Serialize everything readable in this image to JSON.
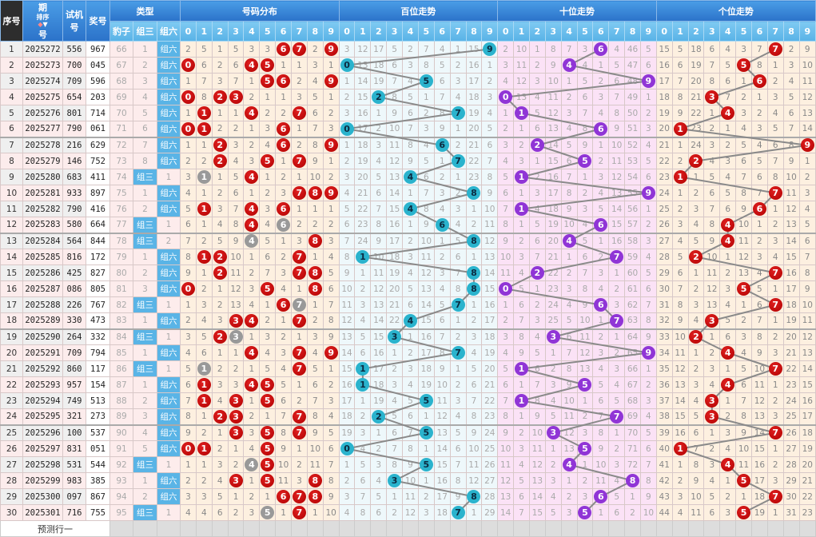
{
  "header": {
    "seq": "序号",
    "issue_top": "期",
    "issue_bottom": "号",
    "sort": "排序",
    "trial_top": "试机",
    "trial_bottom": "号",
    "prize": "奖号",
    "type_group": "类型",
    "dist_group": "号码分布",
    "hundreds_group": "百位走势",
    "tens_group": "十位走势",
    "units_group": "个位走势",
    "type_cols": [
      "豹子",
      "组三",
      "组六"
    ],
    "digits": [
      "0",
      "1",
      "2",
      "3",
      "4",
      "5",
      "6",
      "7",
      "8",
      "9"
    ]
  },
  "rows": [
    {
      "seq": "1",
      "issue": "2025272",
      "trial": "556",
      "prize": "967"
    },
    {
      "seq": "2",
      "issue": "2025273",
      "trial": "700",
      "prize": "045"
    },
    {
      "seq": "3",
      "issue": "2025274",
      "trial": "709",
      "prize": "596"
    },
    {
      "seq": "4",
      "issue": "2025275",
      "trial": "654",
      "prize": "203"
    },
    {
      "seq": "5",
      "issue": "2025276",
      "trial": "801",
      "prize": "714"
    },
    {
      "seq": "6",
      "issue": "2025277",
      "trial": "790",
      "prize": "061"
    },
    {
      "seq": "7",
      "issue": "2025278",
      "trial": "216",
      "prize": "629"
    },
    {
      "seq": "8",
      "issue": "2025279",
      "trial": "146",
      "prize": "752"
    },
    {
      "seq": "9",
      "issue": "2025280",
      "trial": "683",
      "prize": "411"
    },
    {
      "seq": "10",
      "issue": "2025281",
      "trial": "933",
      "prize": "897"
    },
    {
      "seq": "11",
      "issue": "2025282",
      "trial": "790",
      "prize": "416"
    },
    {
      "seq": "12",
      "issue": "2025283",
      "trial": "580",
      "prize": "664"
    },
    {
      "seq": "13",
      "issue": "2025284",
      "trial": "564",
      "prize": "844"
    },
    {
      "seq": "14",
      "issue": "2025285",
      "trial": "816",
      "prize": "172"
    },
    {
      "seq": "15",
      "issue": "2025286",
      "trial": "425",
      "prize": "827"
    },
    {
      "seq": "16",
      "issue": "2025287",
      "trial": "086",
      "prize": "805"
    },
    {
      "seq": "17",
      "issue": "2025288",
      "trial": "226",
      "prize": "767"
    },
    {
      "seq": "18",
      "issue": "2025289",
      "trial": "330",
      "prize": "473"
    },
    {
      "seq": "19",
      "issue": "2025290",
      "trial": "264",
      "prize": "332"
    },
    {
      "seq": "20",
      "issue": "2025291",
      "trial": "709",
      "prize": "794"
    },
    {
      "seq": "21",
      "issue": "2025292",
      "trial": "860",
      "prize": "117"
    },
    {
      "seq": "22",
      "issue": "2025293",
      "trial": "957",
      "prize": "154"
    },
    {
      "seq": "23",
      "issue": "2025294",
      "trial": "749",
      "prize": "513"
    },
    {
      "seq": "24",
      "issue": "2025295",
      "trial": "321",
      "prize": "273"
    },
    {
      "seq": "25",
      "issue": "2025296",
      "trial": "100",
      "prize": "537"
    },
    {
      "seq": "26",
      "issue": "2025297",
      "trial": "831",
      "prize": "051"
    },
    {
      "seq": "27",
      "issue": "2025298",
      "trial": "531",
      "prize": "544"
    },
    {
      "seq": "28",
      "issue": "2025299",
      "trial": "983",
      "prize": "385"
    },
    {
      "seq": "29",
      "issue": "2025300",
      "trial": "097",
      "prize": "867"
    },
    {
      "seq": "30",
      "issue": "2025301",
      "trial": "716",
      "prize": "755"
    }
  ],
  "first_row_omissions": {
    "type": [
      66,
      1,
      0
    ],
    "dist": [
      2,
      5,
      1,
      5,
      3,
      3,
      0,
      0,
      2,
      0
    ],
    "hundreds": [
      3,
      12,
      17,
      5,
      2,
      7,
      4,
      1,
      15,
      0
    ],
    "tens": [
      2,
      10,
      1,
      8,
      7,
      3,
      0,
      4,
      46,
      5
    ],
    "units": [
      15,
      5,
      18,
      6,
      4,
      3,
      7,
      0,
      2,
      9
    ]
  },
  "footer": {
    "forecast_label": "预测行一"
  },
  "colors": {
    "header": "#2b72c9",
    "subheader": "#58b2e6",
    "type_hit": "#5ab4e6",
    "dist_ball": "#c00000",
    "dup_ball": "#999999",
    "hundreds_ball": "#2ab3cd",
    "tens_ball": "#9035d6",
    "units_ball": "#c00000",
    "trend_line": "#8a8a8a"
  }
}
